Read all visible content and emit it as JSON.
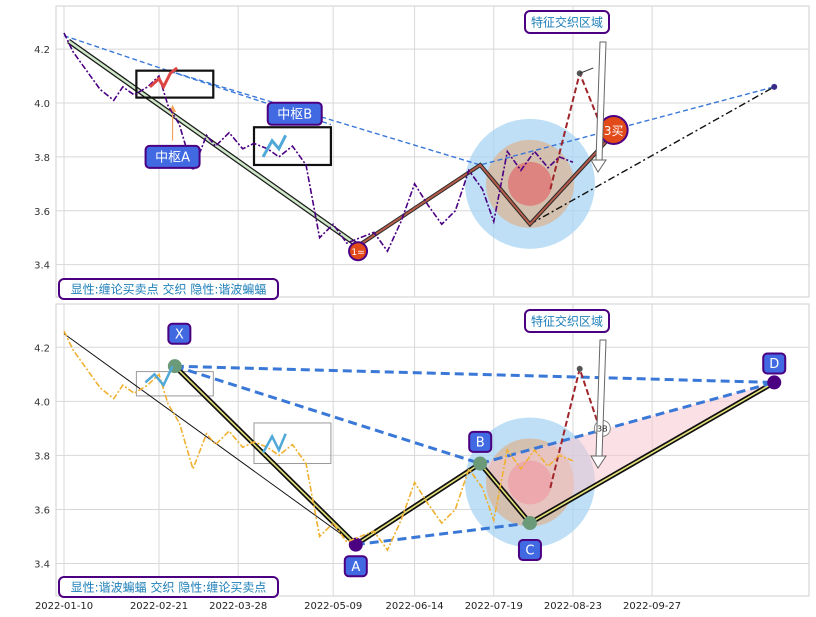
{
  "chart_data": [
    {
      "type": "line",
      "panel": "top",
      "ylim": [
        3.28,
        4.36
      ],
      "yticks": [
        3.4,
        3.6,
        3.8,
        4.0,
        4.2
      ],
      "grid": true,
      "label": "显性:缠论买卖点 交织 隐性:谐波蝙蝠",
      "annotations": {
        "zone_label": "特征交织区域",
        "zhongshu_a": "中枢A",
        "zhongshu_b": "中枢B",
        "buy1": "1=",
        "buy3": "3买"
      },
      "series": [
        {
          "x": [
            "2022-01-10",
            "2022-01-14",
            "2022-01-20",
            "2022-01-26",
            "2022-02-01",
            "2022-02-05",
            "2022-02-10",
            "2022-02-16",
            "2022-02-21",
            "2022-02-25",
            "2022-03-02",
            "2022-03-08",
            "2022-03-14",
            "2022-03-18",
            "2022-03-24",
            "2022-03-30",
            "2022-04-04",
            "2022-04-10",
            "2022-04-15",
            "2022-04-21",
            "2022-04-27",
            "2022-05-03",
            "2022-05-09",
            "2022-05-15",
            "2022-05-21",
            "2022-05-27",
            "2022-06-02",
            "2022-06-08",
            "2022-06-14",
            "2022-06-20",
            "2022-06-26",
            "2022-07-02",
            "2022-07-08",
            "2022-07-14",
            "2022-07-19",
            "2022-07-25",
            "2022-07-31",
            "2022-08-06",
            "2022-08-12",
            "2022-08-17",
            "2022-08-23"
          ],
          "values": [
            4.26,
            4.19,
            4.12,
            4.05,
            4.01,
            4.06,
            4.03,
            4.06,
            4.1,
            3.99,
            3.92,
            3.75,
            3.88,
            3.84,
            3.89,
            3.83,
            3.85,
            3.83,
            3.8,
            3.84,
            3.77,
            3.5,
            3.55,
            3.48,
            3.5,
            3.52,
            3.45,
            3.56,
            3.7,
            3.62,
            3.55,
            3.6,
            3.75,
            3.68,
            3.56,
            3.82,
            3.75,
            3.82,
            3.76,
            3.8,
            3.78
          ]
        }
      ]
    },
    {
      "type": "line",
      "panel": "bottom",
      "ylim": [
        3.28,
        4.36
      ],
      "yticks": [
        3.4,
        3.6,
        3.8,
        4.0,
        4.2
      ],
      "grid": true,
      "label": "显性:谐波蝙蝠 交织 隐性:缠论买卖点",
      "annotations": {
        "zone_label": "特征交织区域",
        "points": [
          "X",
          "A",
          "B",
          "C",
          "D"
        ],
        "buy3_small": "3B"
      },
      "xticks": [
        "2022-01-10",
        "2022-02-21",
        "2022-03-28",
        "2022-05-09",
        "2022-06-14",
        "2022-07-19",
        "2022-08-23",
        "2022-09-27"
      ],
      "series": [
        {
          "x": [
            "2022-01-10",
            "2022-01-14",
            "2022-01-20",
            "2022-01-26",
            "2022-02-01",
            "2022-02-05",
            "2022-02-10",
            "2022-02-16",
            "2022-02-21",
            "2022-02-25",
            "2022-03-02",
            "2022-03-08",
            "2022-03-14",
            "2022-03-18",
            "2022-03-24",
            "2022-03-30",
            "2022-04-04",
            "2022-04-10",
            "2022-04-15",
            "2022-04-21",
            "2022-04-27",
            "2022-05-03",
            "2022-05-09",
            "2022-05-15",
            "2022-05-21",
            "2022-05-27",
            "2022-06-02",
            "2022-06-08",
            "2022-06-14",
            "2022-06-20",
            "2022-06-26",
            "2022-07-02",
            "2022-07-08",
            "2022-07-14",
            "2022-07-19",
            "2022-07-25",
            "2022-07-31",
            "2022-08-06",
            "2022-08-12",
            "2022-08-17",
            "2022-08-23"
          ],
          "values": [
            4.26,
            4.19,
            4.12,
            4.05,
            4.01,
            4.06,
            4.03,
            4.06,
            4.1,
            3.99,
            3.92,
            3.75,
            3.88,
            3.84,
            3.89,
            3.83,
            3.85,
            3.83,
            3.8,
            3.84,
            3.77,
            3.5,
            3.55,
            3.48,
            3.5,
            3.52,
            3.45,
            3.56,
            3.7,
            3.62,
            3.55,
            3.6,
            3.75,
            3.68,
            3.56,
            3.82,
            3.75,
            3.82,
            3.76,
            3.8,
            3.78
          ]
        }
      ]
    }
  ],
  "colors": {
    "price_top": "#4b0082",
    "price_bottom": "#f0b030",
    "trend_blue": "#3a78d8",
    "callout_fill": "#4169e1",
    "callout_border": "#4b0082",
    "zone_outer": "#a8d4f2",
    "zone_mid": "#d9b89c",
    "zone_inner": "#e07070",
    "grid": "#d8d8d8"
  }
}
